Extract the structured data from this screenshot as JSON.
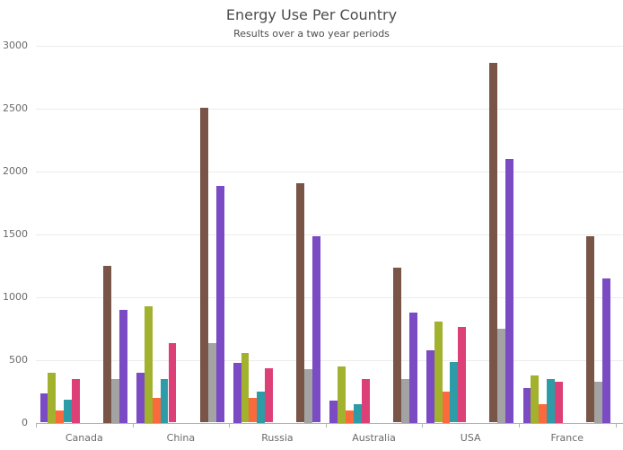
{
  "chart_data": {
    "type": "bar",
    "title": "Energy Use Per Country",
    "subtitle": "Results over a two year periods",
    "categories": [
      "Canada",
      "China",
      "Russia",
      "Australia",
      "USA",
      "France"
    ],
    "ylim": [
      0,
      3000
    ],
    "yticks": [
      0,
      500,
      1000,
      1500,
      2000,
      2500,
      3000
    ],
    "grid": true,
    "legend": "none",
    "colors": {
      "purple": "#7b4bc3",
      "olive": "#a2b22e",
      "orange": "#fa6a3c",
      "teal": "#2e9ca6",
      "pink": "#dc4076",
      "brown": "#795548",
      "gray": "#a3a3a3",
      "violet": "#7b4bc3"
    },
    "series": [
      {
        "name": "purple",
        "cluster": 1,
        "color": "#7b4bc3",
        "values": [
          230,
          400,
          475,
          175,
          575,
          275
        ]
      },
      {
        "name": "olive",
        "cluster": 1,
        "color": "#a2b22e",
        "values": [
          400,
          925,
          555,
          450,
          805,
          375
        ]
      },
      {
        "name": "orange",
        "cluster": 1,
        "color": "#fa6a3c",
        "values": [
          100,
          200,
          195,
          100,
          250,
          150
        ]
      },
      {
        "name": "teal",
        "cluster": 1,
        "color": "#2e9ca6",
        "values": [
          180,
          350,
          250,
          150,
          480,
          350
        ]
      },
      {
        "name": "pink",
        "cluster": 1,
        "color": "#dc4076",
        "values": [
          350,
          630,
          430,
          350,
          760,
          325
        ]
      },
      {
        "name": "brown",
        "cluster": 2,
        "color": "#795548",
        "values": [
          1250,
          2505,
          1905,
          1235,
          2860,
          1485
        ]
      },
      {
        "name": "gray",
        "cluster": 2,
        "color": "#a3a3a3",
        "values": [
          350,
          630,
          425,
          350,
          750,
          325
        ]
      },
      {
        "name": "violet",
        "cluster": 2,
        "color": "#7b4bc3",
        "values": [
          900,
          1880,
          1480,
          875,
          2100,
          1150
        ]
      }
    ]
  }
}
